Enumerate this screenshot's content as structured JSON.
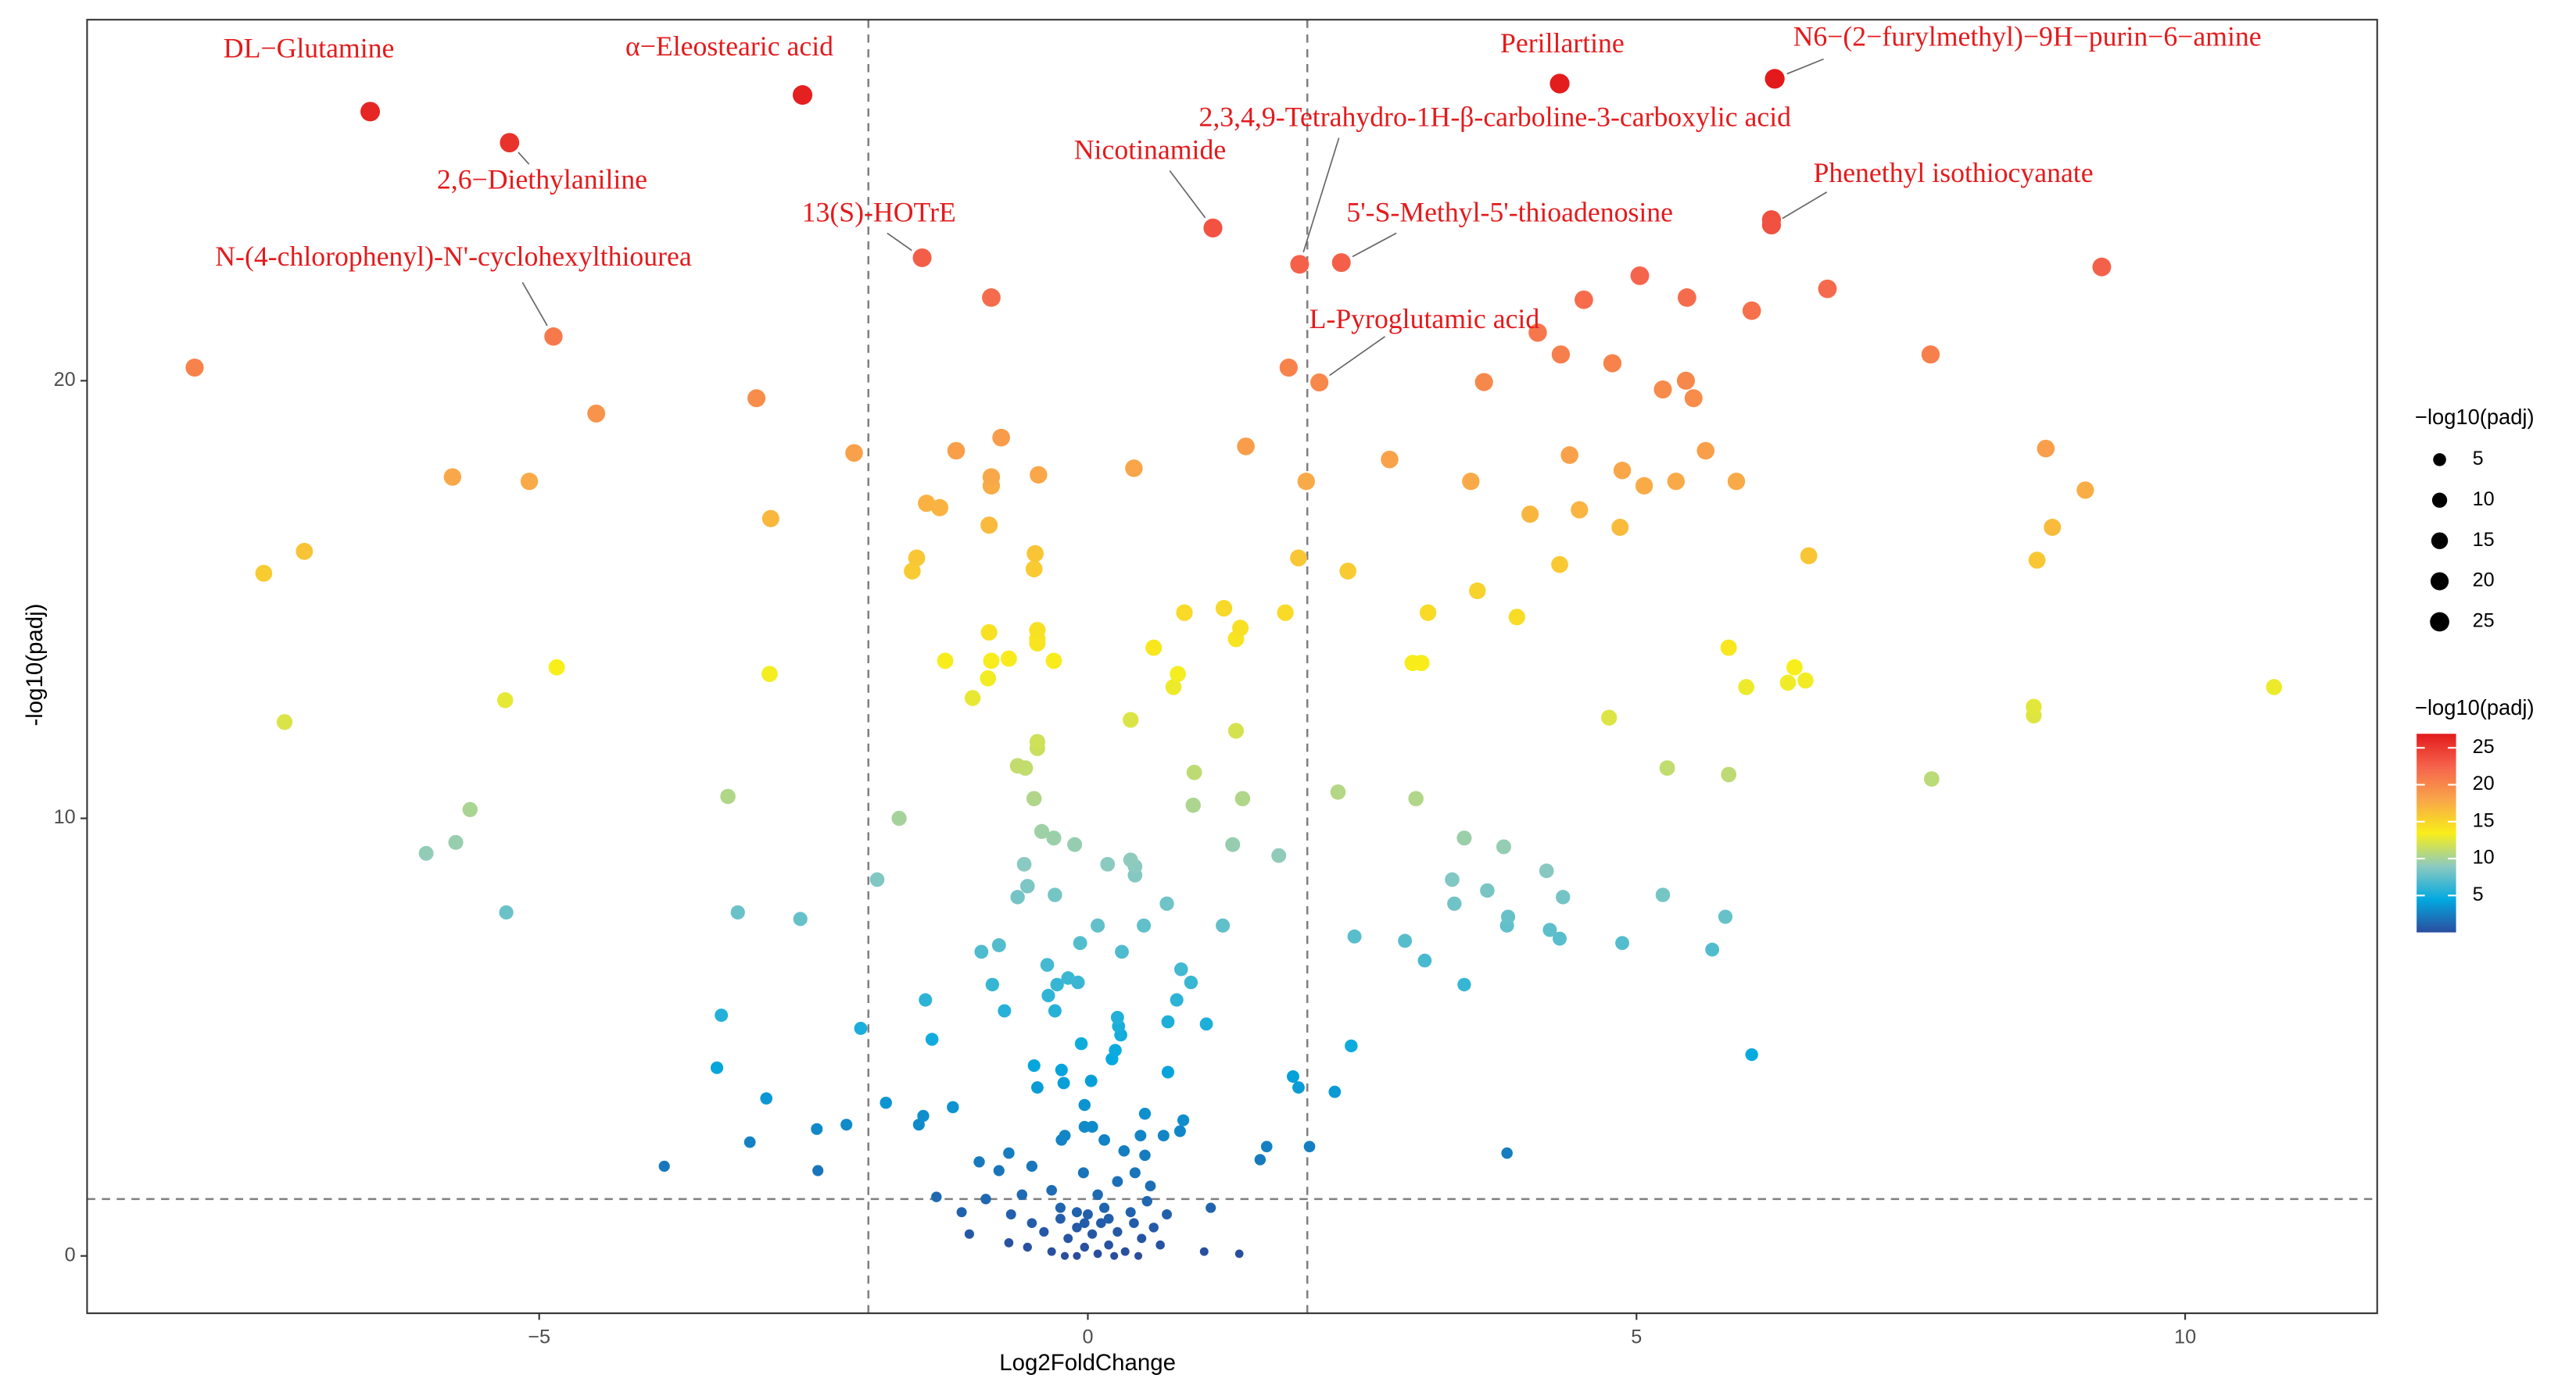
{
  "chart_data": {
    "type": "scatter",
    "xlabel": "Log2FoldChange",
    "ylabel": "-log10(padj)",
    "xlim": [
      -9.12,
      11.75
    ],
    "ylim": [
      -1.31,
      28.25
    ],
    "xticks": [
      {
        "value": -5,
        "label": "−5"
      },
      0,
      5,
      10
    ],
    "yticks": [
      0,
      10,
      20
    ],
    "vlines": [
      -2,
      2
    ],
    "hlines": [
      1.3
    ],
    "size_legend_title": "−log10(padj)",
    "size_breaks": [
      5,
      10,
      15,
      20,
      25
    ],
    "color_legend_title": "−log10(padj)",
    "color_breaks": [
      5,
      10,
      15,
      20,
      25
    ],
    "colorlim": [
      0,
      26.9
    ],
    "palette": [
      "#2a4d9e",
      "#03a9e0",
      "#8ccac0",
      "#f8ee1a",
      "#f9a64a",
      "#f5644c",
      "#e31a1c"
    ],
    "label_color": "#e41a1c",
    "labels": [
      "DL−Glutamine",
      "α−Eleostearic acid",
      "2,6−Diethylaniline",
      "N-(4-chlorophenyl)-N'-cyclohexylthiourea",
      "13(S)-HOTrE",
      "Nicotinamide",
      "Perillartine",
      "N6−(2−furylmethyl)−9H−purin−6−amine",
      "2,3,4,9-Tetrahydro-1H-β-carboline-3-carboxylic acid",
      "5'-S-Methyl-5'-thioadenosine",
      "Phenethyl isothiocyanate",
      null,
      "L-Pyroglutamic acid"
    ],
    "x": [
      -6.54,
      -2.6,
      -5.27,
      -4.87,
      -1.51,
      1.14,
      4.3,
      6.26,
      1.93,
      2.31,
      6.23,
      6.23,
      2.11,
      -8.14,
      -3.02,
      -4.48,
      -0.88,
      1.83,
      3.61,
      4.1,
      4.31,
      4.52,
      4.78,
      5.03,
      5.24,
      5.46,
      5.45,
      5.52,
      6.05,
      6.74,
      7.68,
      9.24,
      -5.79,
      -5.09,
      -2.13,
      -1.2,
      -0.79,
      -0.88,
      -0.88,
      -0.45,
      0.42,
      1.44,
      1.99,
      2.75,
      3.49,
      4.39,
      4.87,
      5.07,
      5.36,
      5.63,
      5.91,
      8.73,
      9.09,
      -2.89,
      -1.47,
      -1.35,
      -0.9,
      4.03,
      4.48,
      4.85,
      8.79,
      -7.14,
      -7.51,
      -1.56,
      -1.6,
      -0.48,
      -0.49,
      1.92,
      2.37,
      4.3,
      6.57,
      8.65,
      3.55,
      3.1,
      3.91,
      0.88,
      1.24,
      1.8,
      1.39,
      1.35,
      -0.9,
      -0.46,
      -0.46,
      -0.46,
      0.6,
      5.84,
      -1.3,
      -0.88,
      -0.72,
      -0.31,
      0.82,
      0.78,
      -0.91,
      -1.05,
      -4.84,
      -2.9,
      2.96,
      3.04,
      6.44,
      6,
      6.38,
      6.54,
      10.81,
      -5.31,
      -7.32,
      0.39,
      1.35,
      4.75,
      8.62,
      8.62,
      -0.64,
      -0.57,
      -0.46,
      -0.46,
      0.97,
      5.28,
      5.84,
      7.69,
      -0.49,
      0.96,
      1.41,
      2.28,
      2.99,
      -3.28,
      -5.63,
      -1.72,
      -0.42,
      -0.31,
      -0.12,
      -5.76,
      -6.03,
      1.32,
      1.74,
      3.43,
      3.79,
      -1.92,
      -0.58,
      0.18,
      0.39,
      0.43,
      0.43,
      4.18,
      3.32,
      3.64,
      -0.55,
      -0.64,
      -0.3,
      4.33,
      5.24,
      3.34,
      0.72,
      -5.3,
      -3.19,
      -2.62,
      3.83,
      3.82,
      5.81,
      0.09,
      0.51,
      1.23,
      2.43,
      4.21,
      4.3,
      4.87,
      2.89,
      -0.07,
      5.69,
      -0.97,
      -0.81,
      0.31,
      3.07,
      -0.37,
      0.85,
      0.94,
      -0.18,
      -0.09,
      -0.28,
      -0.87,
      3.43,
      -0.36,
      0.81,
      -1.48,
      -0.76,
      -0.3,
      0.27,
      0.28,
      0.73,
      1.08,
      -3.34,
      -2.07,
      -1.42,
      0.3,
      0.25,
      -0.06,
      0.22,
      2.4,
      6.05,
      -3.38,
      -0.49,
      -0.24,
      0.73,
      0.03,
      -0.22,
      1.87,
      1.92,
      2.25,
      -0.46,
      -2.93,
      -1.84,
      -1.23,
      -0.03,
      0.52,
      -1.5,
      0.87,
      -2.2,
      -2.47,
      -0.03,
      0.04,
      -1.54,
      0.84,
      0.69,
      -0.21,
      0.48,
      -0.24,
      0.15,
      -3.08,
      -0.72,
      1.63,
      0.33,
      2.02,
      3.82,
      0.52,
      1.57,
      -0.99,
      -0.51,
      -3.86,
      -2.46,
      -0.81,
      -0.04,
      0.43,
      -1.38,
      -0.93,
      -0.6,
      -1.15,
      1.12,
      -0.33,
      0.09,
      0.27,
      0.57,
      0.72,
      -1.08,
      -0.72,
      1.06,
      1.38,
      -0.51,
      -0.4,
      -0.25,
      -0.18,
      -0.1,
      -0.03,
      0.04,
      0.12,
      0.19,
      0.27,
      0.34,
      0.42,
      0.49,
      0.6,
      0.66,
      -0.33,
      -0.55,
      -0.25,
      -0.1,
      0,
      0.15,
      0.39,
      -0.1,
      0.09,
      0.24,
      0.46,
      -0.21,
      -0.03,
      0.19,
      0.54,
      -0.7
    ],
    "values": [
      26.15,
      26.53,
      25.44,
      21.01,
      22.81,
      23.49,
      26.79,
      26.9,
      22.66,
      22.7,
      23.56,
      23.68,
      19.96,
      20.3,
      19.6,
      19.25,
      21.9,
      20.3,
      19.97,
      21.1,
      20.6,
      21.85,
      20.4,
      22.4,
      19.8,
      21.9,
      20,
      19.6,
      21.6,
      22.1,
      20.6,
      22.6,
      17.8,
      17.7,
      18.35,
      18.4,
      18.7,
      17.8,
      17.6,
      17.85,
      18,
      18.5,
      17.7,
      18.2,
      17.7,
      18.3,
      17.95,
      17.6,
      17.7,
      18.4,
      17.7,
      18.45,
      17.5,
      16.85,
      17.2,
      17.1,
      16.7,
      16.95,
      17.05,
      16.65,
      16.65,
      16.1,
      15.6,
      15.95,
      15.65,
      16.05,
      15.7,
      15.95,
      15.65,
      15.8,
      16,
      15.9,
      15.2,
      14.7,
      14.6,
      14.7,
      14.8,
      14.7,
      14.35,
      14.1,
      14.25,
      14.3,
      14.1,
      14,
      13.9,
      13.9,
      13.6,
      13.6,
      13.65,
      13.6,
      13.3,
      13,
      13.2,
      12.75,
      13.45,
      13.3,
      13.55,
      13.55,
      13.45,
      13,
      13.1,
      13.15,
      13,
      12.7,
      12.2,
      12.25,
      12,
      12.3,
      12.55,
      12.35,
      11.2,
      11.15,
      11.75,
      11.6,
      11.05,
      11.15,
      11,
      10.9,
      10.45,
      10.3,
      10.45,
      10.6,
      10.45,
      10.5,
      10.2,
      10,
      9.7,
      9.55,
      9.4,
      9.45,
      9.2,
      9.4,
      9.15,
      9.55,
      9.35,
      8.6,
      8.95,
      8.95,
      9.05,
      8.9,
      8.7,
      8.8,
      8.6,
      8.35,
      8.45,
      8.2,
      8.25,
      8.2,
      8.25,
      8.05,
      8.05,
      7.85,
      7.85,
      7.7,
      7.75,
      7.55,
      7.75,
      7.55,
      7.55,
      7.55,
      7.3,
      7.45,
      7.25,
      7.15,
      7.2,
      7.15,
      7,
      6.95,
      7.1,
      6.95,
      6.75,
      6.65,
      6.55,
      6.25,
      6.35,
      6.25,
      6.2,
      6.2,
      6.2,
      5.95,
      5.85,
      5.85,
      5.6,
      5.6,
      5.45,
      5.25,
      5.35,
      5.3,
      5.5,
      5.2,
      4.95,
      5.05,
      4.7,
      4.85,
      4.5,
      4.8,
      4.6,
      4.3,
      4.35,
      4.25,
      4.2,
      4,
      3.95,
      4.1,
      3.85,
      3.75,
      3.85,
      3.6,
      3.5,
      3.4,
      3.45,
      3.25,
      3.2,
      3.1,
      3,
      2.9,
      2.95,
      2.95,
      3,
      2.85,
      2.75,
      2.75,
      2.75,
      2.65,
      2.65,
      2.6,
      2.35,
      2.5,
      2.4,
      2.5,
      2.35,
      2.3,
      2.2,
      2.15,
      2.05,
      2.05,
      1.95,
      1.95,
      1.9,
      1.9,
      1.35,
      1.3,
      1.4,
      1,
      1.1,
      1.5,
      1.4,
      1.7,
      1.6,
      0.95,
      0.5,
      0.3,
      0.1,
      0.05,
      0.75,
      0.55,
      0.85,
      0.4,
      0.65,
      0.2,
      0.5,
      0.75,
      0.25,
      0.55,
      0.1,
      0.75,
      0.4,
      0.65,
      0.25,
      0.1,
      0.2,
      1.1,
      1,
      0.95,
      1.1,
      1,
      0,
      0.05,
      0,
      0,
      0,
      0.75,
      0.85,
      1.25,
      0.95
    ]
  }
}
